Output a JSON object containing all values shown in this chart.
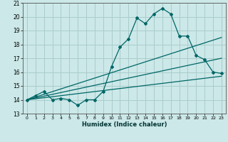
{
  "xlabel": "Humidex (Indice chaleur)",
  "bg_color": "#cce8e8",
  "line_color": "#006666",
  "grid_color": "#aacccc",
  "xlim": [
    -0.5,
    23.5
  ],
  "ylim": [
    13,
    21
  ],
  "xticks": [
    0,
    1,
    2,
    3,
    4,
    5,
    6,
    7,
    8,
    9,
    10,
    11,
    12,
    13,
    14,
    15,
    16,
    17,
    18,
    19,
    20,
    21,
    22,
    23
  ],
  "yticks": [
    13,
    14,
    15,
    16,
    17,
    18,
    19,
    20,
    21
  ],
  "series1_x": [
    0,
    1,
    2,
    3,
    4,
    5,
    6,
    7,
    8,
    9,
    10,
    11,
    12,
    13,
    14,
    15,
    16,
    17,
    18,
    19,
    20,
    21,
    22,
    23
  ],
  "series1_y": [
    14.0,
    14.3,
    14.6,
    14.0,
    14.1,
    14.0,
    13.6,
    14.0,
    14.0,
    14.6,
    16.4,
    17.8,
    18.4,
    19.9,
    19.5,
    20.2,
    20.6,
    20.2,
    18.6,
    18.6,
    17.2,
    16.9,
    16.0,
    15.9
  ],
  "series2_x": [
    0,
    23
  ],
  "series2_y": [
    14.0,
    18.5
  ],
  "series3_x": [
    0,
    23
  ],
  "series3_y": [
    14.0,
    17.0
  ],
  "series4_x": [
    0,
    23
  ],
  "series4_y": [
    14.0,
    15.7
  ]
}
